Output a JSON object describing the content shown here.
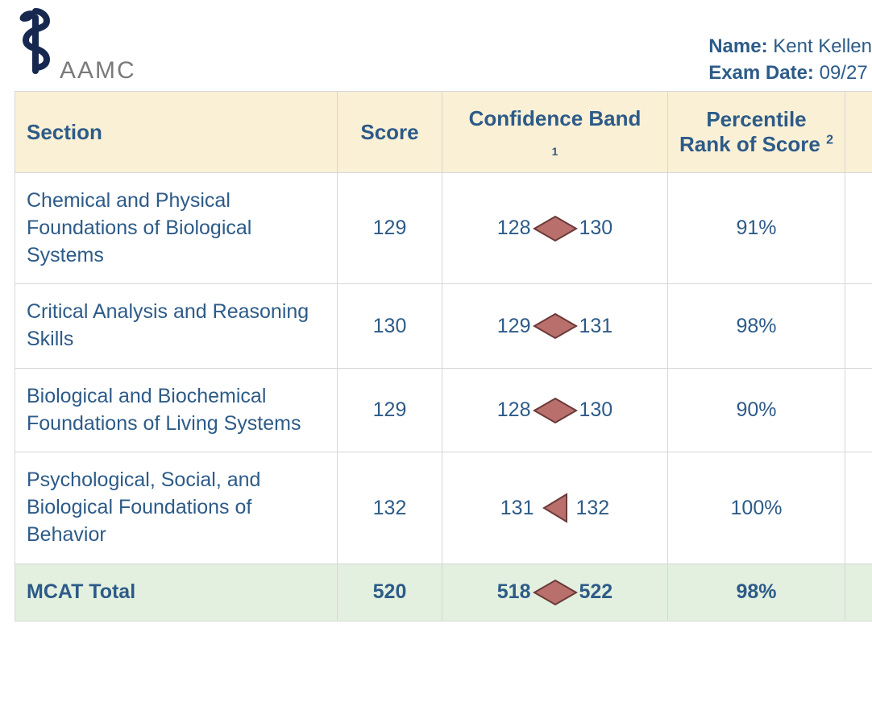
{
  "brand": {
    "name": "AAMC"
  },
  "meta": {
    "name_label": "Name:",
    "name_value": "Kent Kellen",
    "date_label": "Exam Date:",
    "date_value": "09/27"
  },
  "columns": {
    "section": "Section",
    "score": "Score",
    "band": "Confidence Band",
    "percentile": "Percentile Rank of Score"
  },
  "style": {
    "header_bg": "#faf0d6",
    "header_text": "#2d5b88",
    "row_text": "#2d5b88",
    "border_color": "#d7d7d7",
    "total_bg": "#e3f0e0",
    "diamond_fill": "#b9706d",
    "diamond_stroke": "#6b3a38",
    "diamond_w": 56,
    "diamond_h": 34,
    "triangle_w": 32,
    "triangle_h": 38,
    "logo_color": "#16284f"
  },
  "rows": [
    {
      "section": "Chemical and Physical Foundations of Biological Systems",
      "score": "129",
      "band_low": "128",
      "band_high": "130",
      "marker": "diamond",
      "percentile": "91%"
    },
    {
      "section": "Critical Analysis and Reasoning Skills",
      "score": "130",
      "band_low": "129",
      "band_high": "131",
      "marker": "diamond",
      "percentile": "98%"
    },
    {
      "section": "Biological and Biochemical Foundations of Living Systems",
      "score": "129",
      "band_low": "128",
      "band_high": "130",
      "marker": "diamond",
      "percentile": "90%"
    },
    {
      "section": "Psychological, Social, and Biological Foundations of Behavior",
      "score": "132",
      "band_low": "131",
      "band_high": "132",
      "marker": "triangle",
      "percentile": "100%"
    }
  ],
  "total": {
    "label": "MCAT Total",
    "score": "520",
    "band_low": "518",
    "band_high": "522",
    "marker": "diamond",
    "percentile": "98%"
  }
}
